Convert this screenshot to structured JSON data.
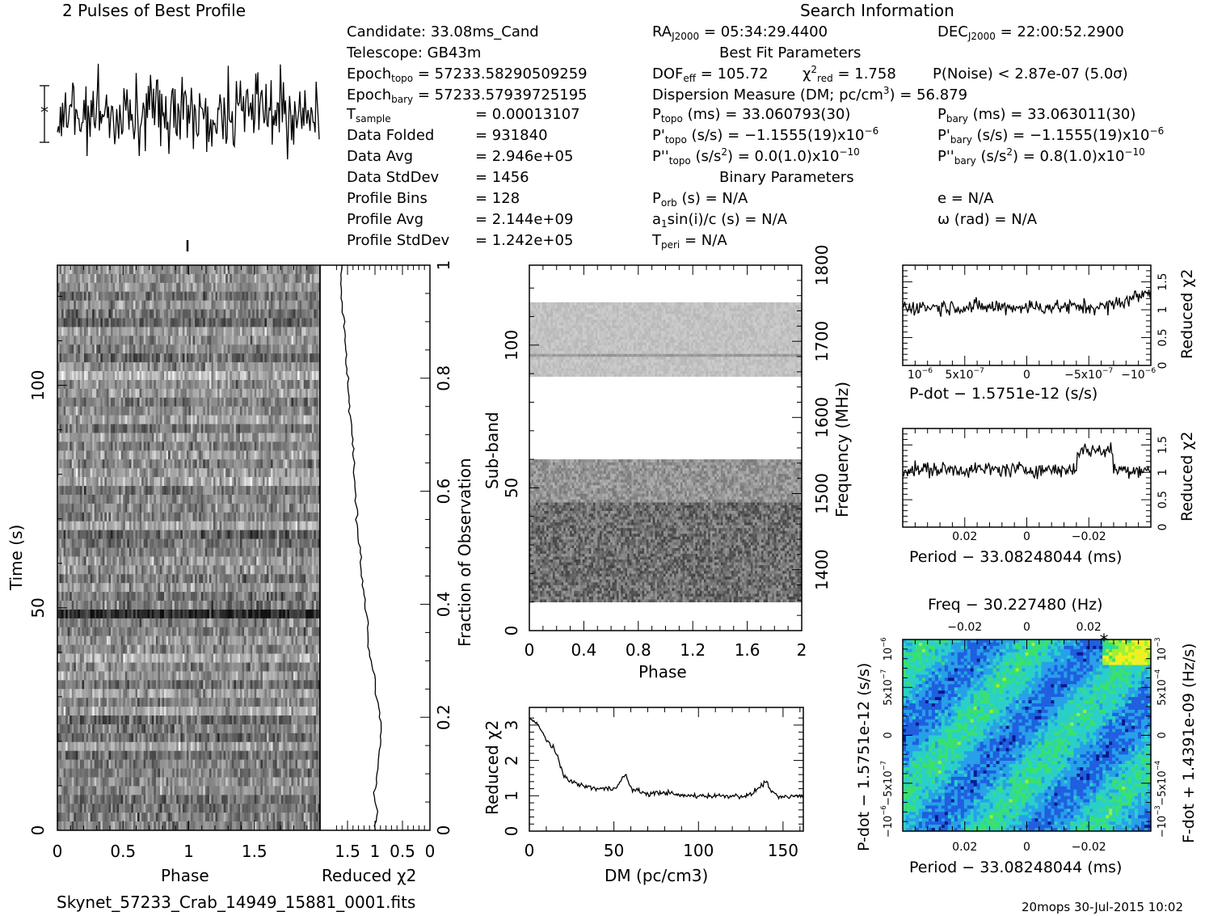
{
  "header": {
    "profile_title": "2 Pulses of Best Profile",
    "search_title": "Search Information",
    "best_fit_title": "Best Fit Parameters",
    "binary_title": "Binary Parameters",
    "filename": "Skynet_57233_Crab_14949_15881_0001.fits",
    "footer": "20mops 30-Jul-2015 10:02"
  },
  "info": {
    "candidate": "Candidate:  33.08ms_Cand",
    "telescope": "Telescope:  GB43m",
    "epoch_topo_lbl": "Epoch",
    "epoch_topo_sub": "topo",
    "epoch_topo_val": " = 57233.58290509259",
    "epoch_bary_lbl": "Epoch",
    "epoch_bary_sub": "bary",
    "epoch_bary_val": " = 57233.57939725195",
    "tsample_lbl": "T",
    "tsample_sub": "sample",
    "tsample_val": "=   0.00013107",
    "folded_lbl": "Data Folded",
    "folded_val": "=   931840",
    "avg_lbl": "Data Avg",
    "avg_val": "=   2.946e+05",
    "std_lbl": "Data StdDev",
    "std_val": "=   1456",
    "bins_lbl": "Profile Bins",
    "bins_val": "=   128",
    "pavg_lbl": "Profile Avg",
    "pavg_val": "=   2.144e+09",
    "pstd_lbl": "Profile StdDev",
    "pstd_val": "=   1.242e+05"
  },
  "search": {
    "ra_lbl": "RA",
    "ra_sub": "J2000",
    "ra_val": " = 05:34:29.4400",
    "dec_lbl": "DEC",
    "dec_sub": "J2000",
    "dec_val": " = 22:00:52.2900",
    "dof_lbl": "DOF",
    "dof_sub": "eff",
    "dof_val": " = 105.72",
    "chi_lbl": "χ",
    "chi_sup": "2",
    "chi_sub": "red",
    "chi_val": " = 1.758",
    "pnoise": "P(Noise) < 2.87e-07  (5.0σ)",
    "dm_pre": "Dispersion Measure (DM; pc/cm",
    "dm_sup": "3",
    "dm_post": ") = 56.879",
    "ptopo_lbl": "P",
    "ptopo_sub": "topo",
    "ptopo_val": " (ms) =  33.060793(30)",
    "pbary_lbl": "P",
    "pbary_sub": "bary",
    "pbary_val": " (ms) =  33.063011(30)",
    "pdtopo_lbl": "P'",
    "pdtopo_sub": "topo",
    "pdtopo_val": " (s/s) = −1.1555(19)x10",
    "pdtopo_exp": "−6",
    "pdbary_lbl": "P'",
    "pdbary_sub": "bary",
    "pdbary_val": " (s/s) = −1.1555(19)x10",
    "pdbary_exp": "−6",
    "pddtopo_lbl": "P''",
    "pddtopo_sub": "topo",
    "pddtopo_mid": " (s/s",
    "pddtopo_sup": "2",
    "pddtopo_val": ") = 0.0(1.0)x10",
    "pddtopo_exp": "−10",
    "pddbary_lbl": "P''",
    "pddbary_sub": "bary",
    "pddbary_mid": " (s/s",
    "pddbary_sup": "2",
    "pddbary_val": ") =  0.8(1.0)x10",
    "pddbary_exp": "−10",
    "porb_lbl": "P",
    "porb_sub": "orb",
    "porb_val": " (s) = N/A",
    "e_val": "e = N/A",
    "asini_lbl": "a",
    "asini_sub": "1",
    "asini_val": "sin(i)/c (s) = N/A",
    "omega_val": "ω (rad) = N/A",
    "tperi_lbl": "T",
    "tperi_sub": "peri",
    "tperi_val": " = N/A"
  },
  "chart_data": [
    {
      "type": "line",
      "title": "2 Pulses of Best Profile",
      "xlabel": "",
      "ylabel": "",
      "note": "noisy profile, 256 points spanning 2 pulses"
    },
    {
      "type": "heatmap",
      "xlabel": "Phase",
      "ylabel": "Time (s)",
      "xlim": [
        0,
        2
      ],
      "ylim": [
        0,
        127
      ],
      "xticks": [
        "0",
        "0.5",
        "1",
        "1.5"
      ],
      "yticks": [
        "0",
        "50",
        "100"
      ],
      "right_label": "Fraction of Observation",
      "right_ticks": [
        "0",
        "0.2",
        "0.4",
        "0.6",
        "0.8",
        "1"
      ]
    },
    {
      "type": "line",
      "xlabel": "Reduced χ2",
      "xticks": [
        "1.5",
        "1",
        "0.5",
        "0"
      ],
      "values_x": [
        1.0,
        0.95,
        1.02,
        0.96,
        0.93,
        0.88,
        0.9,
        0.97,
        1.02,
        1.08,
        1.12,
        1.13,
        1.18,
        1.22,
        1.25,
        1.28,
        1.32,
        1.34,
        1.36,
        1.37,
        1.4,
        1.42,
        1.45,
        1.47,
        1.5,
        1.52,
        1.54,
        1.56,
        1.6,
        1.62,
        1.62
      ],
      "values_y": [
        0.0,
        0.03,
        0.06,
        0.1,
        0.13,
        0.17,
        0.2,
        0.23,
        0.27,
        0.3,
        0.33,
        0.37,
        0.4,
        0.43,
        0.47,
        0.5,
        0.53,
        0.57,
        0.6,
        0.63,
        0.67,
        0.7,
        0.73,
        0.77,
        0.8,
        0.83,
        0.87,
        0.9,
        0.93,
        0.97,
        1.0
      ]
    },
    {
      "type": "heatmap",
      "xlabel": "Phase",
      "ylabel": "Sub-band",
      "xlim": [
        0,
        2
      ],
      "ylim": [
        0,
        128
      ],
      "xticks": [
        "0",
        "0.4",
        "0.8",
        "1.2",
        "1.6",
        "2"
      ],
      "yticks": [
        "0",
        "50",
        "100"
      ],
      "right_label": "Frequency (MHz)",
      "right_ticks": [
        "1400",
        "1500",
        "1600",
        "1700",
        "1800"
      ],
      "bands": [
        [
          10,
          60
        ],
        [
          89,
          115
        ]
      ]
    },
    {
      "type": "line",
      "xlabel": "DM (pc/cm3)",
      "ylabel": "Reduced χ2",
      "xlim": [
        0,
        162
      ],
      "ylim": [
        0,
        3.5
      ],
      "xticks": [
        "0",
        "50",
        "100",
        "150"
      ],
      "yticks": [
        "0",
        "1",
        "2",
        "3"
      ],
      "x": [
        0,
        5,
        10,
        15,
        20,
        25,
        30,
        40,
        50,
        57,
        60,
        70,
        80,
        90,
        100,
        110,
        120,
        130,
        140,
        145,
        150,
        160
      ],
      "y": [
        3.2,
        3.0,
        2.6,
        2.3,
        1.6,
        1.4,
        1.3,
        1.2,
        1.2,
        1.6,
        1.2,
        1.05,
        1.1,
        1.0,
        1.0,
        1.0,
        1.0,
        1.0,
        1.4,
        1.0,
        0.95,
        1.0
      ]
    },
    {
      "type": "line",
      "xlabel": "P-dot − 1.5751e-12 (s/s)",
      "ylabel": "Reduced χ2",
      "ylim": [
        0,
        1.7
      ],
      "xticks": [
        "10",
        "5x10",
        "0",
        "−5x10",
        "−10"
      ],
      "xtick_exps": [
        "−6",
        "−7",
        "",
        "−7",
        "−6"
      ],
      "yticks": [
        "0",
        "0.5",
        "1",
        "1.5"
      ]
    },
    {
      "type": "line",
      "xlabel": "Period − 33.08248044 (ms)",
      "ylabel": "Reduced χ2",
      "ylim": [
        0,
        1.7
      ],
      "xticks": [
        "0.02",
        "0",
        "−0.02"
      ],
      "yticks": [
        "0",
        "0.5",
        "1",
        "1.5"
      ]
    },
    {
      "type": "heatmap",
      "title": "Freq − 30.227480 (Hz)",
      "xlabel": "Period − 33.08248044 (ms)",
      "ylabel": "P-dot − 1.5751e-12 (s/s)",
      "right_label": "F-dot + 1.4391e-09 (Hz/s)",
      "top_ticks": [
        "−0.02",
        "0",
        "0.02"
      ],
      "bottom_ticks": [
        "0.02",
        "0",
        "−0.02"
      ],
      "left_ticks": [
        "10",
        "5x10",
        "0",
        "−5x10",
        "−10"
      ],
      "left_tick_exps": [
        "−6",
        "−7",
        "",
        "−7",
        "−6"
      ],
      "right_ticks": [
        "10",
        "5x10",
        "0",
        "−5x10",
        "−10"
      ],
      "right_tick_exps": [
        "−3",
        "−4",
        "",
        "−4",
        "−3"
      ],
      "colors": [
        "#0a1a8c",
        "#1f5fe0",
        "#27a0e8",
        "#2ad0c8",
        "#39e070",
        "#a0f030",
        "#f0f020"
      ]
    }
  ]
}
